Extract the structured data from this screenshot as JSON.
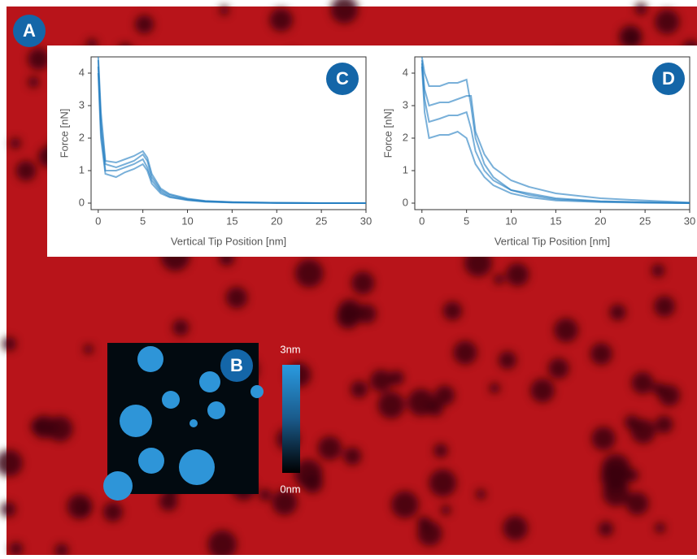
{
  "panels": {
    "a": "A",
    "b": "B",
    "colorbar_top": "3nm",
    "colorbar_bottom": "0nm"
  },
  "chart_data": [
    {
      "type": "line",
      "panel": "C",
      "xlabel": "Vertical Tip Position [nm]",
      "ylabel": "Force [nN]",
      "xlim": [
        -0.8,
        30
      ],
      "ylim": [
        -0.2,
        4.5
      ],
      "xticks": [
        0,
        5,
        10,
        15,
        20,
        25,
        30
      ],
      "yticks": [
        0,
        1,
        2,
        3,
        4
      ],
      "x": [
        0,
        0.3,
        0.8,
        2,
        3,
        4,
        5,
        5.5,
        6,
        7,
        8,
        10,
        12,
        15,
        20,
        25,
        30
      ],
      "series": [
        {
          "color": "#1f7cc0",
          "values": [
            4.4,
            2.5,
            1.2,
            1.1,
            1.2,
            1.3,
            1.5,
            1.3,
            0.8,
            0.4,
            0.25,
            0.12,
            0.06,
            0.03,
            0.01,
            0,
            0
          ]
        },
        {
          "color": "#1f7cc0",
          "values": [
            4.2,
            2.2,
            1.0,
            1.0,
            1.1,
            1.2,
            1.35,
            1.1,
            0.7,
            0.35,
            0.2,
            0.1,
            0.05,
            0.02,
            0.01,
            0,
            0
          ]
        },
        {
          "color": "#1f7cc0",
          "values": [
            4.0,
            2.0,
            0.9,
            0.8,
            0.95,
            1.05,
            1.2,
            1.0,
            0.6,
            0.3,
            0.18,
            0.09,
            0.04,
            0.02,
            0,
            0,
            0
          ]
        },
        {
          "color": "#1f7cc0",
          "values": [
            4.5,
            2.8,
            1.3,
            1.25,
            1.35,
            1.45,
            1.6,
            1.4,
            0.9,
            0.45,
            0.28,
            0.14,
            0.07,
            0.03,
            0.01,
            0,
            0
          ]
        }
      ]
    },
    {
      "type": "line",
      "panel": "D",
      "xlabel": "Vertical Tip Position [nm]",
      "ylabel": "Force [nN]",
      "xlim": [
        -0.8,
        30
      ],
      "ylim": [
        -0.2,
        4.5
      ],
      "xticks": [
        0,
        5,
        10,
        15,
        20,
        25,
        30
      ],
      "yticks": [
        0,
        1,
        2,
        3,
        4
      ],
      "x": [
        0,
        0.3,
        0.8,
        2,
        3,
        4,
        5,
        5.5,
        6,
        7,
        8,
        10,
        12,
        15,
        20,
        25,
        30
      ],
      "series": [
        {
          "color": "#1f7cc0",
          "values": [
            4.5,
            4.0,
            3.6,
            3.6,
            3.7,
            3.7,
            3.8,
            3.0,
            2.0,
            1.2,
            0.8,
            0.4,
            0.25,
            0.12,
            0.05,
            0.02,
            0
          ]
        },
        {
          "color": "#1f7cc0",
          "values": [
            4.3,
            3.2,
            2.5,
            2.6,
            2.7,
            2.7,
            2.8,
            2.3,
            1.6,
            1.0,
            0.7,
            0.4,
            0.3,
            0.15,
            0.06,
            0.03,
            0
          ]
        },
        {
          "color": "#1f7cc0",
          "values": [
            4.2,
            2.8,
            2.0,
            2.1,
            2.1,
            2.2,
            2.0,
            1.6,
            1.2,
            0.8,
            0.55,
            0.3,
            0.18,
            0.08,
            0.03,
            0.01,
            0
          ]
        },
        {
          "color": "#1f7cc0",
          "values": [
            4.4,
            3.5,
            3.0,
            3.1,
            3.1,
            3.2,
            3.3,
            3.3,
            2.2,
            1.5,
            1.1,
            0.7,
            0.5,
            0.3,
            0.15,
            0.08,
            0.02
          ]
        }
      ]
    }
  ]
}
